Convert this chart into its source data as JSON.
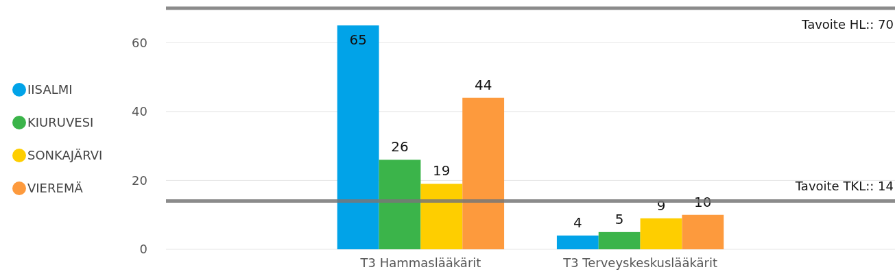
{
  "chart_data": {
    "type": "bar",
    "categories": [
      "T3 Hammaslääkärit",
      "T3 Terveyskeskuslääkärit"
    ],
    "series": [
      {
        "name": "IISALMI",
        "color": "#01a3e8",
        "values": [
          65,
          4
        ]
      },
      {
        "name": "KIURUVESI",
        "color": "#3bb44a",
        "values": [
          26,
          5
        ]
      },
      {
        "name": "SONKAJÄRVI",
        "color": "#fece00",
        "values": [
          19,
          9
        ]
      },
      {
        "name": "VIEREMÄ",
        "color": "#fd9a3d",
        "values": [
          44,
          10
        ]
      }
    ],
    "ylim": [
      0,
      70
    ],
    "yticks": [
      0,
      20,
      40,
      60
    ],
    "grid": "y",
    "legend": "left",
    "data_labels": true,
    "ref_lines": [
      {
        "axis": "y",
        "value": 70,
        "label": "Tavoite HL:: 70",
        "color": "#777777"
      },
      {
        "axis": "y",
        "value": 14,
        "label": "Tavoite TKL:: 14",
        "color": "#777777"
      }
    ]
  }
}
